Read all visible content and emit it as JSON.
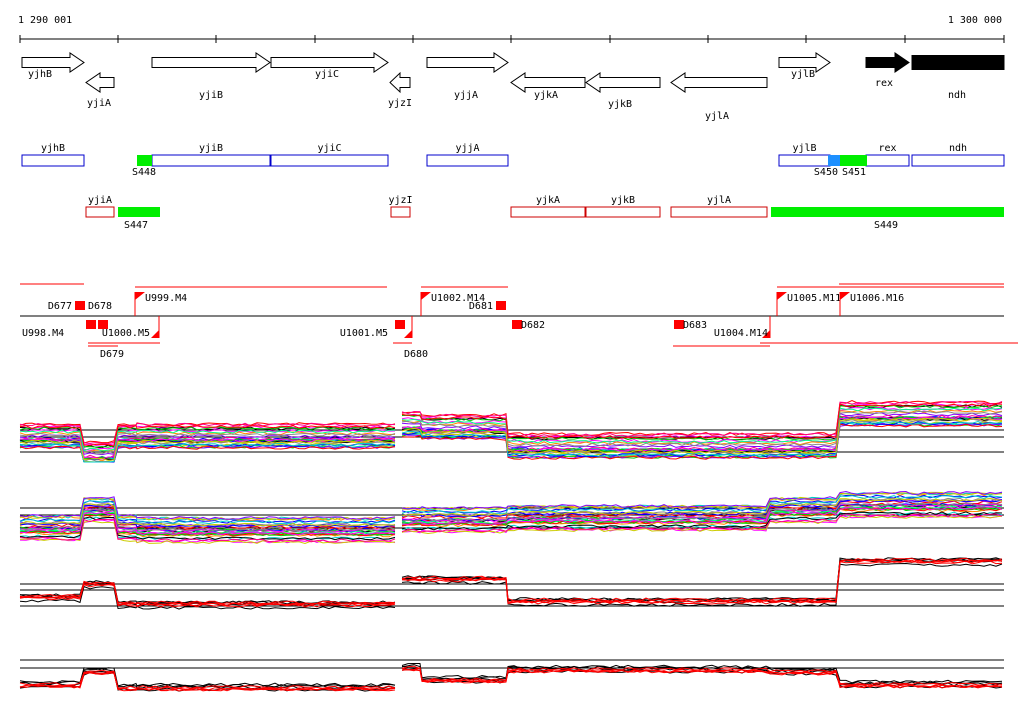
{
  "ruler": {
    "start_label": "1 290 001",
    "end_label": "1 300 000"
  },
  "genes": [
    "yjhB",
    "yjiA",
    "yjiB",
    "yjiC",
    "yjzI",
    "yjjA",
    "yjkA",
    "yjkB",
    "yjlA",
    "yjlB",
    "rex",
    "ndh"
  ],
  "segments": [
    "S447",
    "S448",
    "S449",
    "S450",
    "S451"
  ],
  "transcription_features": [
    "D677",
    "U998.M4",
    "D678",
    "D679",
    "U1000.M5",
    "U999.M4",
    "U1001.M5",
    "D680",
    "U1002.M14",
    "D681",
    "D682",
    "D683",
    "U1004.M14",
    "U1005.M11",
    "U1006.M16"
  ],
  "colors": {
    "segment_green": "#00ee00",
    "segment_blue": "#1e90ff",
    "feature_red": "#ff0000",
    "gene_box_blue": "#0000cc",
    "gene_box_red": "#cc0000"
  }
}
